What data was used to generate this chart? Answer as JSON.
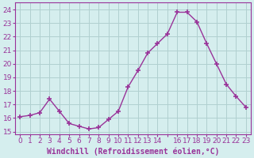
{
  "x": [
    0,
    1,
    2,
    3,
    4,
    5,
    6,
    7,
    8,
    9,
    10,
    11,
    12,
    13,
    14,
    15,
    16,
    17,
    18,
    19,
    20,
    21,
    22,
    23
  ],
  "y": [
    16.1,
    16.2,
    16.4,
    17.4,
    16.5,
    15.6,
    15.4,
    15.2,
    15.3,
    15.9,
    16.5,
    18.3,
    19.5,
    20.8,
    21.5,
    22.2,
    23.8,
    23.8,
    23.1,
    21.5,
    20.0,
    18.5,
    17.6,
    16.8
  ],
  "line_color": "#993399",
  "marker": "+",
  "markersize": 4,
  "markeredgewidth": 1.2,
  "linewidth": 1.0,
  "xlabel": "Windchill (Refroidissement éolien,°C)",
  "xlabel_fontsize": 7,
  "ylim": [
    14.8,
    24.5
  ],
  "yticks": [
    15,
    16,
    17,
    18,
    19,
    20,
    21,
    22,
    23,
    24
  ],
  "xticks": [
    0,
    1,
    2,
    3,
    4,
    5,
    6,
    7,
    8,
    9,
    10,
    11,
    12,
    13,
    14,
    15,
    16,
    17,
    18,
    19,
    20,
    21,
    22,
    23
  ],
  "xtick_labels": [
    "0",
    "1",
    "2",
    "3",
    "4",
    "5",
    "6",
    "7",
    "8",
    "9",
    "10",
    "11",
    "12",
    "13",
    "14",
    "",
    "16",
    "17",
    "18",
    "19",
    "20",
    "21",
    "22",
    "23"
  ],
  "background_color": "#d5eeee",
  "grid_color": "#b0d0d0",
  "tick_color": "#993399",
  "label_color": "#993399",
  "tick_fontsize": 6.5
}
